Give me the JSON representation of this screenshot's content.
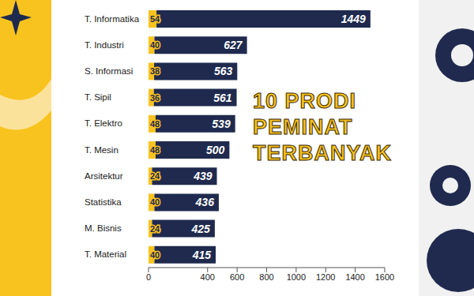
{
  "chart_data": {
    "type": "bar",
    "orientation": "horizontal",
    "stacked": true,
    "title": "10 PRODI PEMINAT TERBANYAK",
    "categories": [
      "T. Informatika",
      "T. Industri",
      "S. Informasi",
      "T. Sipil",
      "T. Elektro",
      "T. Mesin",
      "Arsitektur",
      "Statistika",
      "M. Bisnis",
      "T. Material"
    ],
    "series": [
      {
        "color": "#f9c31f",
        "values": [
          54,
          40,
          38,
          36,
          48,
          48,
          24,
          40,
          24,
          40
        ]
      },
      {
        "color": "#1f2a4e",
        "values": [
          1449,
          627,
          563,
          561,
          539,
          500,
          439,
          436,
          425,
          415
        ]
      }
    ],
    "xlim": [
      0,
      1600
    ],
    "xticks": [
      0,
      400,
      600,
      800,
      1000,
      1200,
      1400,
      1600
    ],
    "grid": false,
    "data_labels": true
  }
}
